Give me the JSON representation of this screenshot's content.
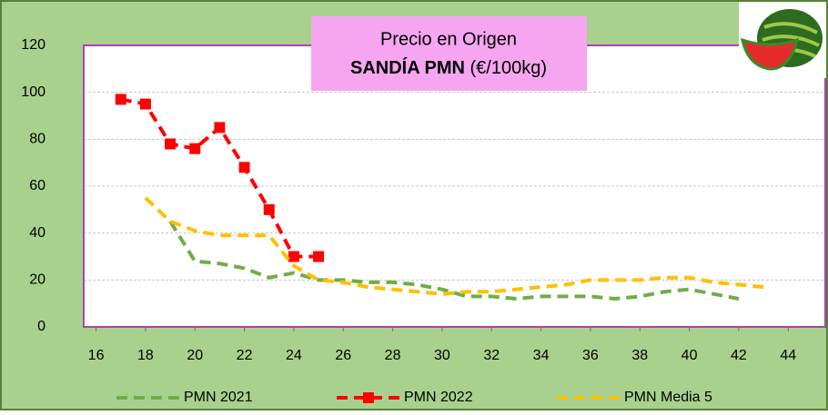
{
  "chart_data": {
    "type": "line",
    "title": "Precio en Origen",
    "subtitle_bold": "SANDÍA PMN",
    "subtitle_rest": "(€/100kg)",
    "x": [
      17,
      18,
      19,
      20,
      21,
      22,
      23,
      24,
      25,
      26,
      27,
      28,
      29,
      30,
      31,
      32,
      33,
      34,
      35,
      36,
      37,
      38,
      39,
      40,
      41,
      42,
      43
    ],
    "series": [
      {
        "name": "PMN 2021",
        "color": "#70ad47",
        "dash": true,
        "marker": false,
        "values": [
          null,
          null,
          45,
          28,
          27,
          25,
          21,
          23,
          20,
          20,
          19,
          19,
          18,
          16,
          13,
          13,
          12,
          13,
          13,
          13,
          12,
          13,
          15,
          16,
          14,
          12,
          null
        ]
      },
      {
        "name": "PMN 2022",
        "color": "#ff0000",
        "dash": true,
        "marker": true,
        "values": [
          97,
          95,
          78,
          76,
          85,
          68,
          50,
          30,
          30,
          null,
          null,
          null,
          null,
          null,
          null,
          null,
          null,
          null,
          null,
          null,
          null,
          null,
          null,
          null,
          null,
          null,
          null
        ]
      },
      {
        "name": "PMN Media 5",
        "color": "#ffc000",
        "dash": true,
        "marker": false,
        "values": [
          null,
          55,
          45,
          41,
          39,
          39,
          39,
          26,
          20,
          19,
          17,
          16,
          15,
          14,
          15,
          15,
          16,
          17,
          18,
          20,
          20,
          20,
          21,
          21,
          19,
          18,
          17
        ]
      }
    ],
    "xlim": [
      15.5,
      45.5
    ],
    "xticks": [
      16,
      18,
      20,
      22,
      24,
      26,
      28,
      30,
      32,
      34,
      36,
      38,
      40,
      42,
      44
    ],
    "ylim": [
      0,
      120
    ],
    "yticks": [
      0,
      20,
      40,
      60,
      80,
      100,
      120
    ],
    "grid": true
  }
}
